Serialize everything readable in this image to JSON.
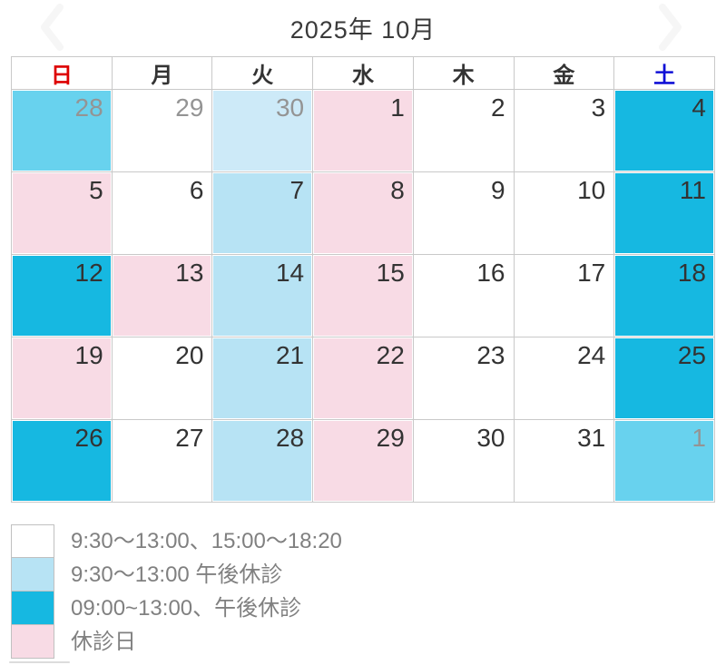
{
  "title": "2025年 10月",
  "nav": {
    "prev_icon": "chevron-left",
    "next_icon": "chevron-right",
    "icon_color": "#f6f6f6"
  },
  "weekdays": [
    {
      "label": "日",
      "color": "#dd0000"
    },
    {
      "label": "月",
      "color": "#333333"
    },
    {
      "label": "火",
      "color": "#333333"
    },
    {
      "label": "水",
      "color": "#333333"
    },
    {
      "label": "木",
      "color": "#333333"
    },
    {
      "label": "金",
      "color": "#333333"
    },
    {
      "label": "土",
      "color": "#0f0fd6"
    }
  ],
  "schedule_types": {
    "full": {
      "color": "#ffffff",
      "label": "9:30〜13:00、15:00〜18:20"
    },
    "morning": {
      "color": "#b7e3f4",
      "label": "9:30〜13:00 午後休診"
    },
    "early": {
      "color": "#16b8e1",
      "label": "09:00~13:00、午後休診"
    },
    "closed": {
      "color": "#f8dbe5",
      "label": "休診日"
    }
  },
  "faded_colors": {
    "early": "#68d2ee",
    "morning": "#cdeaf8"
  },
  "text_colors": {
    "day": "#333333",
    "other_month_day": "#949494",
    "legend": "#808080",
    "title": "#3a3a3a"
  },
  "weeks": [
    [
      {
        "day": "28",
        "type": "early",
        "other": true
      },
      {
        "day": "29",
        "type": "full",
        "other": true
      },
      {
        "day": "30",
        "type": "morning",
        "other": true
      },
      {
        "day": "1",
        "type": "closed"
      },
      {
        "day": "2",
        "type": "full"
      },
      {
        "day": "3",
        "type": "full"
      },
      {
        "day": "4",
        "type": "early"
      }
    ],
    [
      {
        "day": "5",
        "type": "closed"
      },
      {
        "day": "6",
        "type": "full"
      },
      {
        "day": "7",
        "type": "morning"
      },
      {
        "day": "8",
        "type": "closed"
      },
      {
        "day": "9",
        "type": "full"
      },
      {
        "day": "10",
        "type": "full"
      },
      {
        "day": "11",
        "type": "early"
      }
    ],
    [
      {
        "day": "12",
        "type": "early"
      },
      {
        "day": "13",
        "type": "closed"
      },
      {
        "day": "14",
        "type": "morning"
      },
      {
        "day": "15",
        "type": "closed"
      },
      {
        "day": "16",
        "type": "full"
      },
      {
        "day": "17",
        "type": "full"
      },
      {
        "day": "18",
        "type": "early"
      }
    ],
    [
      {
        "day": "19",
        "type": "closed"
      },
      {
        "day": "20",
        "type": "full"
      },
      {
        "day": "21",
        "type": "morning"
      },
      {
        "day": "22",
        "type": "closed"
      },
      {
        "day": "23",
        "type": "full"
      },
      {
        "day": "24",
        "type": "full"
      },
      {
        "day": "25",
        "type": "early"
      }
    ],
    [
      {
        "day": "26",
        "type": "early"
      },
      {
        "day": "27",
        "type": "full"
      },
      {
        "day": "28",
        "type": "morning"
      },
      {
        "day": "29",
        "type": "closed"
      },
      {
        "day": "30",
        "type": "full"
      },
      {
        "day": "31",
        "type": "full"
      },
      {
        "day": "1",
        "type": "early",
        "other": true
      }
    ]
  ],
  "legend": [
    {
      "type": "full",
      "label": "9:30〜13:00、15:00〜18:20"
    },
    {
      "type": "morning",
      "label": "9:30〜13:00 午後休診"
    },
    {
      "type": "early",
      "label": "09:00~13:00、午後休診"
    },
    {
      "type": "closed",
      "label": "休診日"
    }
  ]
}
